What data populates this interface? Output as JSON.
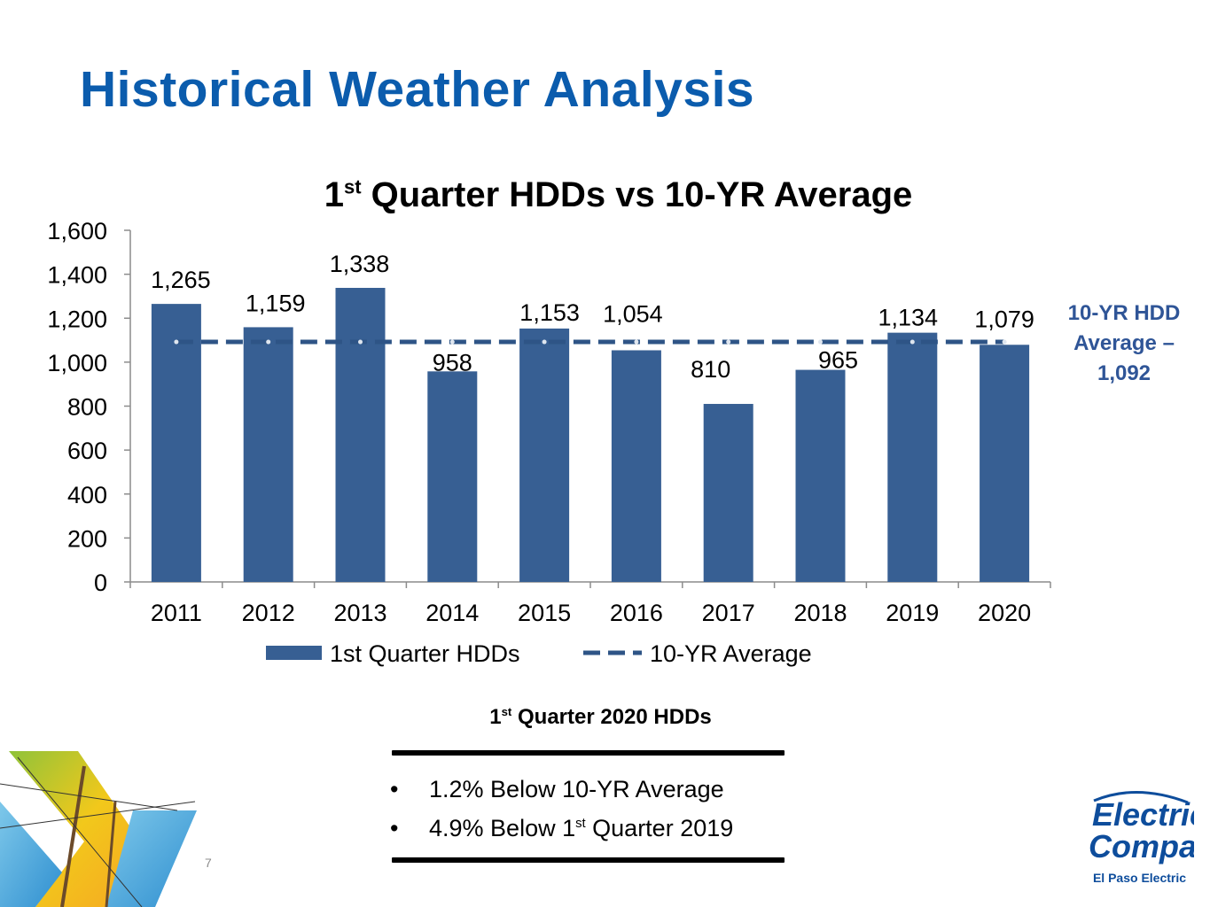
{
  "slide": {
    "title": "Historical Weather Analysis",
    "page_number": "7"
  },
  "chart_title": {
    "main": "1",
    "sup": "st",
    "rest": " Quarter HDDs vs 10-YR Average"
  },
  "chart_data": {
    "type": "bar",
    "title": "1st Quarter HDDs vs 10-YR Average",
    "categories": [
      "2011",
      "2012",
      "2013",
      "2014",
      "2015",
      "2016",
      "2017",
      "2018",
      "2019",
      "2020"
    ],
    "series": [
      {
        "name": "1st Quarter HDDs",
        "type": "bar",
        "values": [
          1265,
          1159,
          1338,
          958,
          1153,
          1054,
          810,
          965,
          1134,
          1079
        ],
        "labels": [
          "1,265",
          "1,159",
          "1,338",
          "958",
          "1,153",
          "1,054",
          "810",
          "965",
          "1,134",
          "1,079"
        ]
      },
      {
        "name": "10-YR Average",
        "type": "line",
        "style": "dashed",
        "values": [
          1092,
          1092,
          1092,
          1092,
          1092,
          1092,
          1092,
          1092,
          1092,
          1092
        ]
      }
    ],
    "ylim": [
      0,
      1600
    ],
    "yticks": [
      0,
      200,
      400,
      600,
      800,
      1000,
      1200,
      1400,
      1600
    ],
    "ytick_labels": [
      "0",
      "200",
      "400",
      "600",
      "800",
      "1,000",
      "1,200",
      "1,400",
      "1,600"
    ],
    "xlabel": "",
    "ylabel": "",
    "grid": false,
    "legend_position": "bottom",
    "colors": {
      "bar": "#375f93",
      "line": "#2e5486"
    }
  },
  "avg_callout": {
    "line1": "10-YR HDD",
    "line2": "Average –",
    "line3": "1,092"
  },
  "summary": {
    "title_main": "1",
    "title_sup": "st",
    "title_rest": " Quarter 2020 HDDs",
    "bullet_char": "•",
    "bullet1": "1.2% Below 10-YR Average",
    "bullet2_pre": "4.9% Below 1",
    "bullet2_sup": "st",
    "bullet2_post": " Quarter 2019"
  },
  "logo": {
    "script_line1": "Electric",
    "script_line2": "Company",
    "company": "El Paso Electric"
  }
}
